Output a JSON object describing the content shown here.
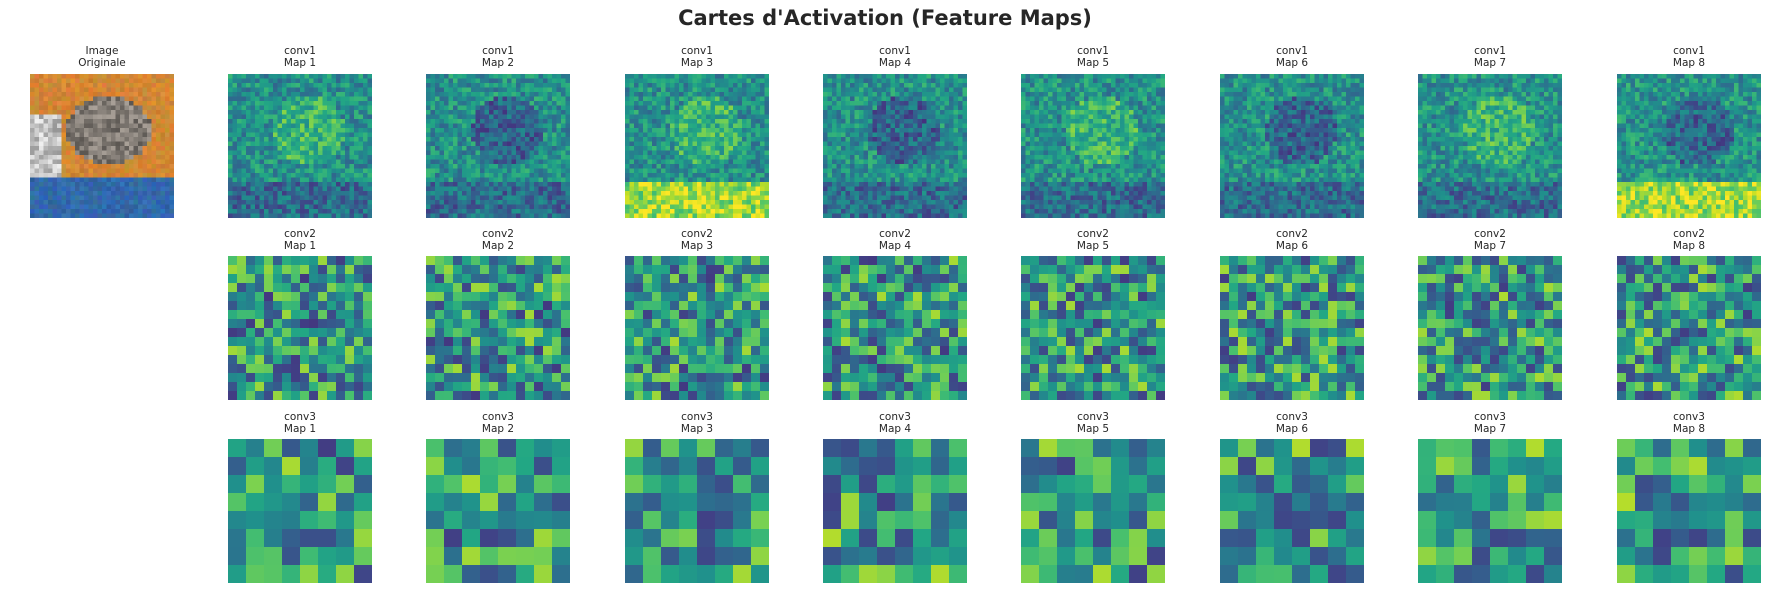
{
  "title": "Cartes d'Activation (Feature Maps)",
  "original": {
    "label1": "Image",
    "label2": "Originale"
  },
  "rows": [
    {
      "layer": "conv1",
      "grid": 32,
      "maps": [
        "Map 1",
        "Map 2",
        "Map 3",
        "Map 4",
        "Map 5",
        "Map 6",
        "Map 7",
        "Map 8"
      ]
    },
    {
      "layer": "conv2",
      "grid": 16,
      "maps": [
        "Map 1",
        "Map 2",
        "Map 3",
        "Map 4",
        "Map 5",
        "Map 6",
        "Map 7",
        "Map 8"
      ]
    },
    {
      "layer": "conv3",
      "grid": 8,
      "maps": [
        "Map 1",
        "Map 2",
        "Map 3",
        "Map 4",
        "Map 5",
        "Map 6",
        "Map 7",
        "Map 8"
      ]
    }
  ],
  "colormap": "viridis"
}
